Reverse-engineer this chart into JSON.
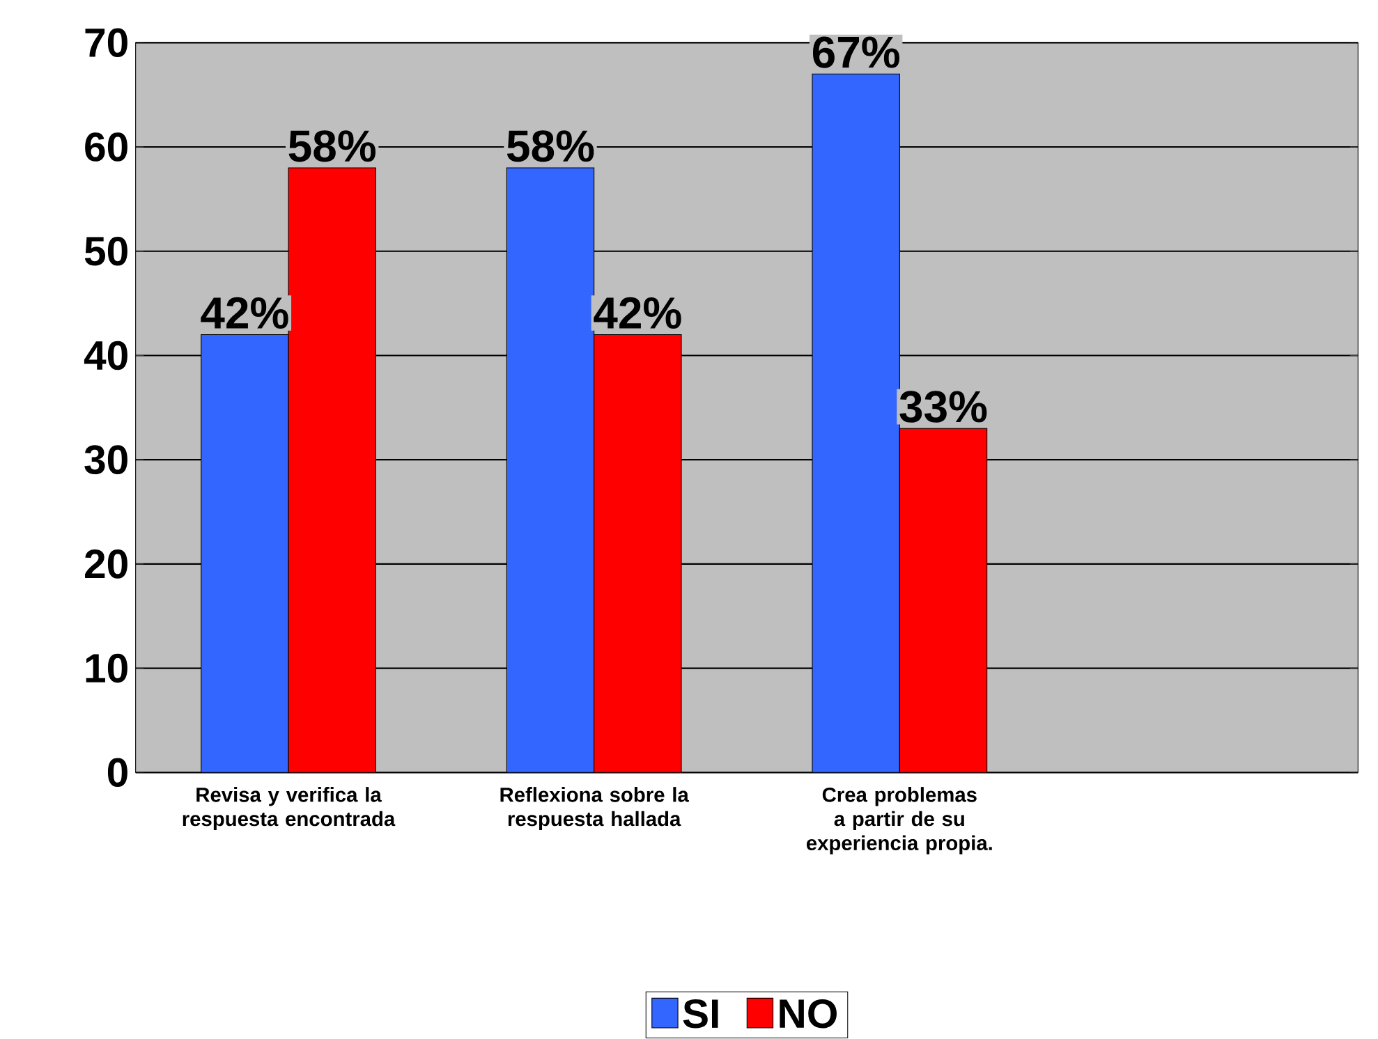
{
  "chart_data": {
    "type": "bar",
    "categories": [
      "Revisa  y verifica la respuesta encontrada",
      "Reflexiona sobre  la respuesta hallada",
      "Crea  problemas a partir  de su experiencia propia.",
      null
    ],
    "series": [
      {
        "name": "SI",
        "color": "#3366ff",
        "values": [
          42,
          58,
          67,
          null
        ],
        "value_labels": [
          "42%",
          "58%",
          "67%",
          null
        ]
      },
      {
        "name": "NO",
        "color": "#ff0000",
        "values": [
          58,
          42,
          33,
          null
        ],
        "value_labels": [
          "58%",
          "42%",
          "33%",
          null
        ]
      }
    ],
    "ylim": [
      0,
      70
    ],
    "yticks": [
      0,
      10,
      20,
      30,
      40,
      50,
      60,
      70
    ],
    "grid": "y",
    "legend": "bottom"
  }
}
